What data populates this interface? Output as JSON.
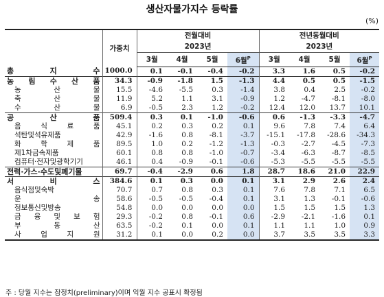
{
  "title": "생산자물가지수 등락률",
  "unit": "(%)",
  "headers": {
    "weight": "가중치",
    "mom_group": "전월대비",
    "yoy_group": "전년동월대비",
    "year": "2023년",
    "months": [
      "3월",
      "4월",
      "5월",
      "6월"
    ],
    "prelim_mark": "P"
  },
  "rows": [
    {
      "label": "총 지 수",
      "level": "major",
      "weight": "1000.0",
      "mom": [
        "0.1",
        "-0.1",
        "-0.4",
        "-0.2"
      ],
      "yoy": [
        "3.3",
        "1.6",
        "0.5",
        "-0.2"
      ]
    },
    {
      "label": "농 림 수 산 품",
      "level": "major",
      "weight": "34.3",
      "mom": [
        "-0.9",
        "-1.8",
        "1.5",
        "-1.3"
      ],
      "yoy": [
        "4.4",
        "0.5",
        "0.5",
        "-1.5"
      ]
    },
    {
      "label": "농 산 물",
      "level": "sub",
      "weight": "15.5",
      "mom": [
        "-4.6",
        "-5.5",
        "0.3",
        "-1.4"
      ],
      "yoy": [
        "3.8",
        "0.4",
        "2.5",
        "-0.2"
      ]
    },
    {
      "label": "축 산 물",
      "level": "sub",
      "weight": "11.9",
      "mom": [
        "5.2",
        "1.1",
        "3.1",
        "-0.9"
      ],
      "yoy": [
        "1.2",
        "-4.7",
        "-8.1",
        "-8.0"
      ]
    },
    {
      "label": "수 산 물",
      "level": "sub",
      "weight": "6.9",
      "mom": [
        "-0.5",
        "2.3",
        "1.2",
        "-0.2"
      ],
      "yoy": [
        "12.4",
        "12.0",
        "13.7",
        "10.1"
      ]
    },
    {
      "label": "공 산 품",
      "level": "major",
      "weight": "509.4",
      "mom": [
        "0.3",
        "0.1",
        "-1.0",
        "-0.6"
      ],
      "yoy": [
        "0.6",
        "-1.3",
        "-3.3",
        "-4.7"
      ]
    },
    {
      "label": "음 식 료 품",
      "level": "sub",
      "weight": "45.1",
      "mom": [
        "0.2",
        "0.3",
        "0.2",
        "0.1"
      ],
      "yoy": [
        "9.6",
        "7.8",
        "7.4",
        "6.4"
      ]
    },
    {
      "label": "석탄및석유제품",
      "level": "sub",
      "weight": "42.9",
      "mom": [
        "-1.6",
        "0.8",
        "-8.1",
        "-3.7"
      ],
      "yoy": [
        "-15.1",
        "-17.8",
        "-28.6",
        "-34.3"
      ]
    },
    {
      "label": "화 학 제 품",
      "level": "sub",
      "weight": "89.5",
      "mom": [
        "1.0",
        "0.2",
        "-1.2",
        "-1.3"
      ],
      "yoy": [
        "-0.3",
        "-2.7",
        "-4.5",
        "-7.3"
      ]
    },
    {
      "label": "제1차금속제품",
      "level": "sub",
      "weight": "60.1",
      "mom": [
        "0.8",
        "0.8",
        "-1.0",
        "-0.7"
      ],
      "yoy": [
        "-3.4",
        "-6.3",
        "-8.7",
        "-8.5"
      ]
    },
    {
      "label": "컴퓨터·전자및광학기기",
      "level": "sub",
      "weight": "46.1",
      "mom": [
        "0.4",
        "-0.9",
        "-0.1",
        "-0.6"
      ],
      "yoy": [
        "-5.3",
        "-5.5",
        "-5.5",
        "-5.5"
      ]
    },
    {
      "label": "전력·가스·수도및폐기물",
      "level": "major",
      "weight": "69.7",
      "mom": [
        "-0.4",
        "-2.9",
        "0.6",
        "1.8"
      ],
      "yoy": [
        "28.7",
        "18.6",
        "21.0",
        "22.9"
      ]
    },
    {
      "label": "서 비 스",
      "level": "major",
      "weight": "384.6",
      "mom": [
        "0.1",
        "0.3",
        "0.0",
        "0.1"
      ],
      "yoy": [
        "3.1",
        "2.9",
        "2.6",
        "2.4"
      ]
    },
    {
      "label": "음식점및숙박",
      "level": "sub",
      "weight": "70.7",
      "mom": [
        "0.7",
        "0.8",
        "0.3",
        "0.1"
      ],
      "yoy": [
        "7.6",
        "7.8",
        "7.1",
        "6.5"
      ]
    },
    {
      "label": "운 송",
      "level": "sub",
      "weight": "58.6",
      "mom": [
        "-0.5",
        "-0.5",
        "-0.4",
        "0.1"
      ],
      "yoy": [
        "3.1",
        "1.3",
        "-0.1",
        "-0.6"
      ]
    },
    {
      "label": "정보통신및방송",
      "level": "sub",
      "weight": "54.8",
      "mom": [
        "0.0",
        "0.0",
        "0.0",
        "0.0"
      ],
      "yoy": [
        "1.5",
        "1.5",
        "1.5",
        "1.3"
      ]
    },
    {
      "label": "금 융 및 보 험",
      "level": "sub",
      "weight": "29.3",
      "mom": [
        "-0.2",
        "0.8",
        "-0.1",
        "0.6"
      ],
      "yoy": [
        "-2.9",
        "-2.1",
        "-1.6",
        "0.1"
      ]
    },
    {
      "label": "부 동 산",
      "level": "sub",
      "weight": "63.5",
      "mom": [
        "-0.2",
        "0.1",
        "0.0",
        "0.1"
      ],
      "yoy": [
        "1.1",
        "1.1",
        "1.0",
        "0.9"
      ]
    },
    {
      "label": "사 업 지 원",
      "level": "sub",
      "weight": "31.2",
      "mom": [
        "0.1",
        "0.0",
        "0.2",
        "0.0"
      ],
      "yoy": [
        "3.7",
        "3.5",
        "3.5",
        "3.3"
      ]
    }
  ],
  "footnote": "주 : 당월 지수는 잠정치(preliminary)이며 익월 지수 공표시 확정됨"
}
